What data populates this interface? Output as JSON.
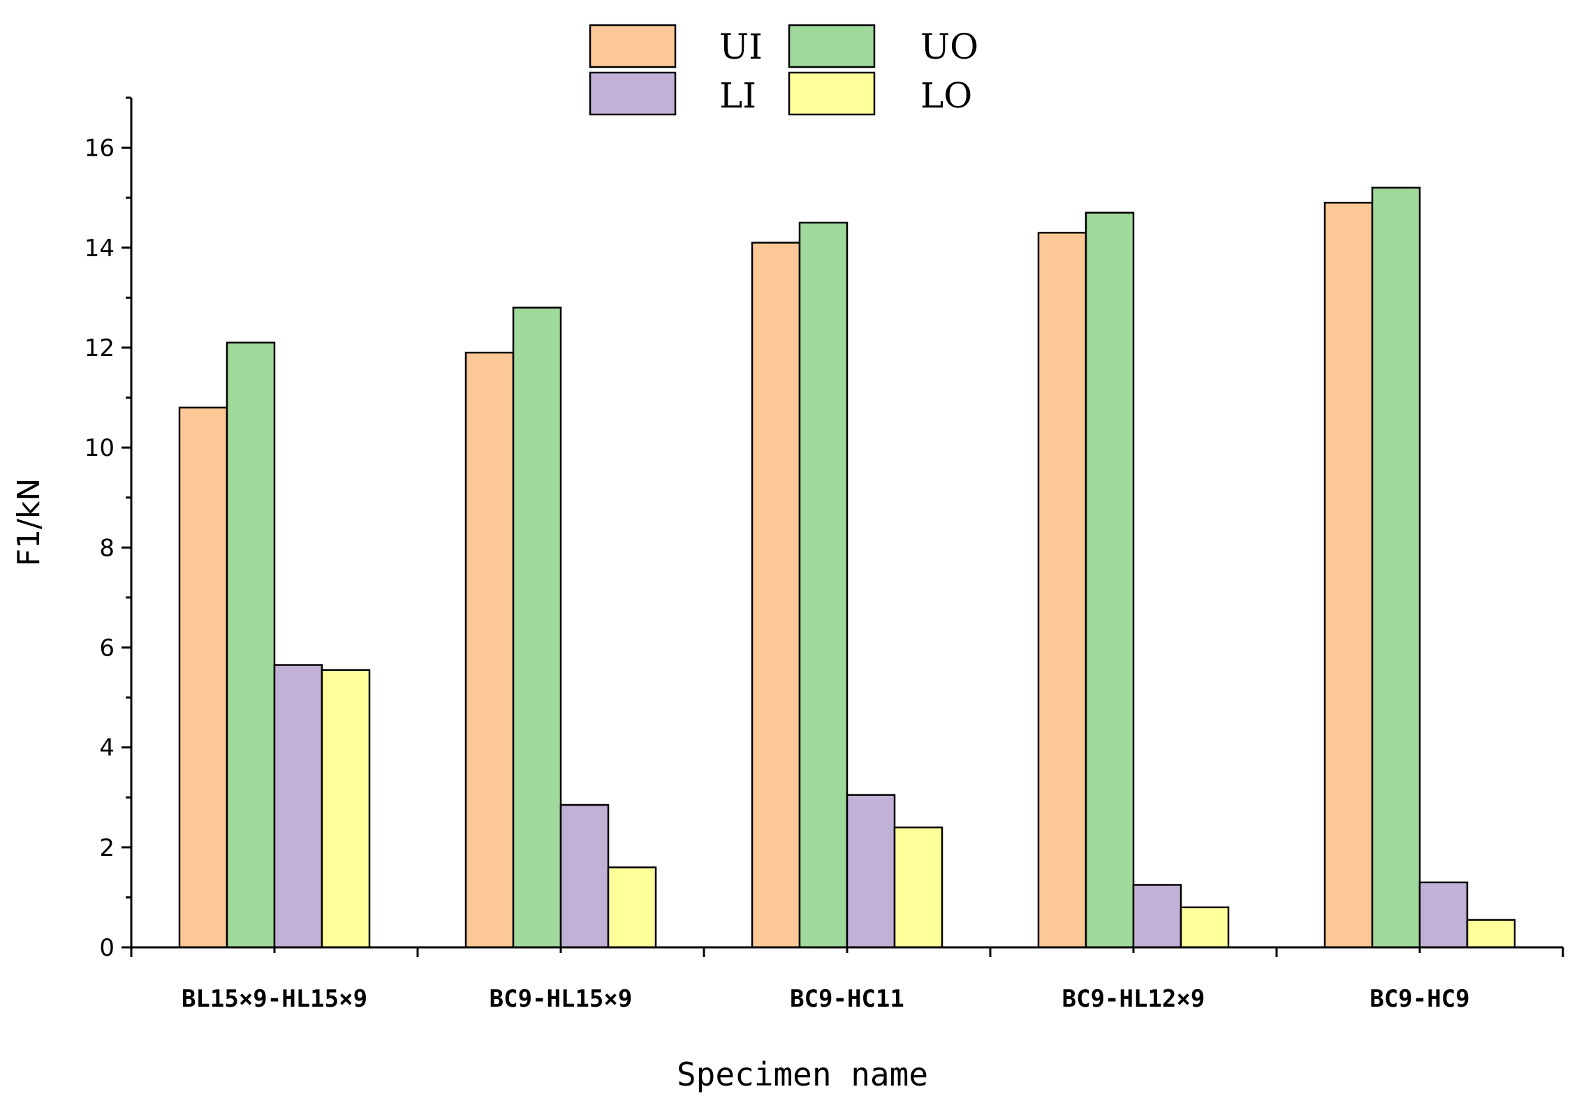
{
  "chart_data": {
    "type": "bar",
    "title": "",
    "xlabel": "Specimen name",
    "ylabel": "F1/kN",
    "ylim": [
      0,
      17
    ],
    "yticks": [
      0,
      2,
      4,
      6,
      8,
      10,
      12,
      14,
      16
    ],
    "categories": [
      "BL15×9-HL15×9",
      "BC9-HL15×9",
      "BC9-HC11",
      "BC9-HL12×9",
      "BC9-HC9"
    ],
    "series": [
      {
        "name": "UI",
        "color": "#fcc896",
        "values": [
          10.8,
          11.9,
          14.1,
          14.3,
          14.9
        ]
      },
      {
        "name": "UO",
        "color": "#9fd99b",
        "values": [
          12.1,
          12.8,
          14.5,
          14.7,
          15.2
        ]
      },
      {
        "name": "LI",
        "color": "#c2b1d6",
        "values": [
          5.65,
          2.85,
          3.05,
          1.25,
          1.3
        ]
      },
      {
        "name": "LO",
        "color": "#ffff9b",
        "values": [
          5.55,
          1.6,
          2.4,
          0.8,
          0.55
        ]
      }
    ],
    "legend_position": "top-center",
    "grid": false
  }
}
